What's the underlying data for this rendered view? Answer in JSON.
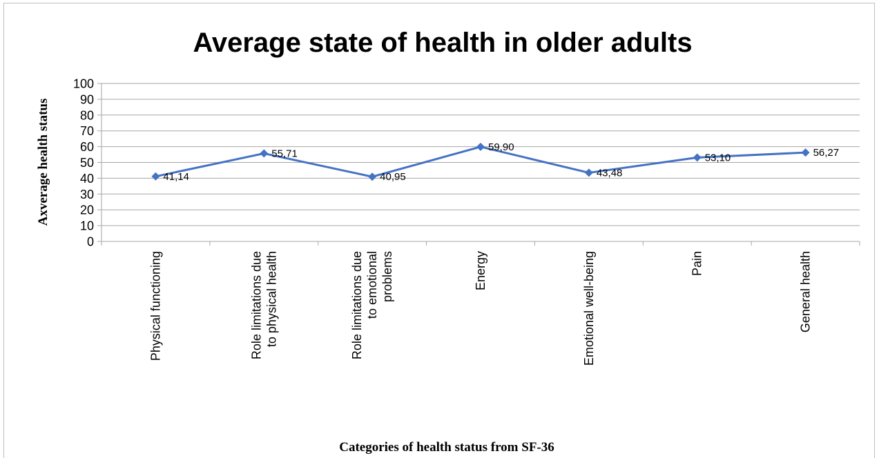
{
  "chart_data": {
    "type": "line",
    "title": "Average state of health in older adults",
    "xlabel": "Categories of health status from SF-36",
    "ylabel": "Axverage health status",
    "ylim": [
      0,
      100
    ],
    "ytick_step": 10,
    "grid": true,
    "legend": "none",
    "categories": [
      "Physical functioning",
      "Role limitations due to physical health",
      "Role limitations due to emotional problems",
      "Energy",
      "Emotional well-being",
      "Pain",
      "General health"
    ],
    "category_label_lines": [
      [
        "Physical functioning"
      ],
      [
        "Role limitations due",
        "to physical health"
      ],
      [
        "Role limitations due",
        "to emotional",
        "problems"
      ],
      [
        "Energy"
      ],
      [
        "Emotional well-being"
      ],
      [
        "Pain"
      ],
      [
        "General health"
      ]
    ],
    "series": [
      {
        "values": [
          41.14,
          55.71,
          40.95,
          59.9,
          43.48,
          53.1,
          56.27
        ],
        "data_labels": [
          "41,14",
          "55,71",
          "40,95",
          "59,90",
          "43,48",
          "53,10",
          "56,27"
        ],
        "color": "#4472c4",
        "marker": "diamond"
      }
    ],
    "gridline_color": "#a6a6a6",
    "axis_color": "#a6a6a6"
  }
}
